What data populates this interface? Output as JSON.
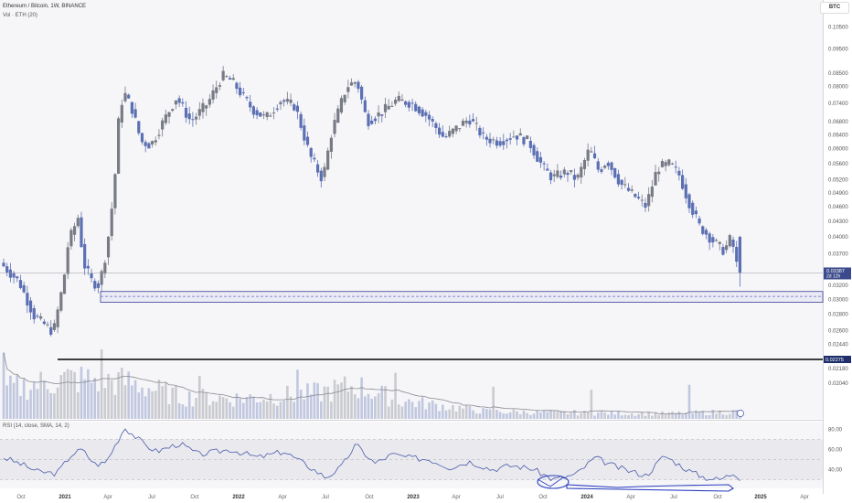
{
  "header": {
    "title": "Ethereum / Bitcoin, 1W, BINANCE",
    "volume_label": "Vol · ETH (20)",
    "rsi_label": "RSI (14, close, SMA, 14, 2)",
    "currency": "BTC"
  },
  "colors": {
    "up": "#787b86",
    "down": "#5b6fb3",
    "accent": "#2a3ec0",
    "background": "#f6f6f8"
  },
  "price_badges": {
    "current": "0.03387",
    "countdown": "2d 12h",
    "support_level": "0.02275"
  },
  "chart_data": {
    "type": "candlestick",
    "price_axis": {
      "scale": "log",
      "range": [
        0.0182,
        0.118
      ],
      "ticks": [
        "0.10500",
        "0.09500",
        "0.08500",
        "0.08000",
        "0.07400",
        "0.06800",
        "0.06400",
        "0.06000",
        "0.05600",
        "0.05200",
        "0.04900",
        "0.04600",
        "0.04300",
        "0.04000",
        "0.03700",
        "0.03200",
        "0.03000",
        "0.02800",
        "0.02600",
        "0.02440",
        "0.02180",
        "0.02040"
      ]
    },
    "rsi_axis": {
      "range": [
        24,
        86
      ],
      "ticks": [
        "80.00",
        "60.00",
        "40.00"
      ],
      "band": [
        30,
        70
      ]
    },
    "time_axis": [
      "Oct",
      "2021",
      "Apr",
      "Jul",
      "Oct",
      "2022",
      "Apr",
      "Jul",
      "Oct",
      "2023",
      "Apr",
      "Jul",
      "Oct",
      "2024",
      "Apr",
      "Jul",
      "Oct",
      "2025",
      "Apr"
    ],
    "last_price": 0.03387,
    "support_zone": [
      0.0296,
      0.0311
    ],
    "support_mid": 0.0304,
    "support_line": 0.02275,
    "anchors": [
      [
        "2020-09-01",
        0.0355
      ],
      [
        "2020-10-10",
        0.0325
      ],
      [
        "2020-11-10",
        0.0278
      ],
      [
        "2020-12-20",
        0.0258
      ],
      [
        "2021-01-10",
        0.0325
      ],
      [
        "2021-01-20",
        0.039
      ],
      [
        "2021-02-10",
        0.044
      ],
      [
        "2021-02-20",
        0.0355
      ],
      [
        "2021-03-10",
        0.0325
      ],
      [
        "2021-03-25",
        0.032
      ],
      [
        "2021-04-10",
        0.038
      ],
      [
        "2021-04-25",
        0.05
      ],
      [
        "2021-05-05",
        0.07
      ],
      [
        "2021-05-15",
        0.078
      ],
      [
        "2021-06-01",
        0.072
      ],
      [
        "2021-06-20",
        0.062
      ],
      [
        "2021-07-10",
        0.061
      ],
      [
        "2021-08-01",
        0.067
      ],
      [
        "2021-09-01",
        0.076
      ],
      [
        "2021-10-01",
        0.068
      ],
      [
        "2021-11-05",
        0.074
      ],
      [
        "2021-12-05",
        0.084
      ],
      [
        "2021-12-25",
        0.082
      ],
      [
        "2022-02-05",
        0.072
      ],
      [
        "2022-03-05",
        0.069
      ],
      [
        "2022-04-05",
        0.075
      ],
      [
        "2022-05-05",
        0.073
      ],
      [
        "2022-06-05",
        0.058
      ],
      [
        "2022-07-01",
        0.052
      ],
      [
        "2022-07-20",
        0.065
      ],
      [
        "2022-08-20",
        0.08
      ],
      [
        "2022-09-10",
        0.082
      ],
      [
        "2022-10-01",
        0.068
      ],
      [
        "2022-11-01",
        0.071
      ],
      [
        "2022-12-01",
        0.075
      ],
      [
        "2023-01-01",
        0.074
      ],
      [
        "2023-02-01",
        0.07
      ],
      [
        "2023-03-10",
        0.063
      ],
      [
        "2023-04-05",
        0.066
      ],
      [
        "2023-05-01",
        0.069
      ],
      [
        "2023-06-01",
        0.063
      ],
      [
        "2023-07-01",
        0.062
      ],
      [
        "2023-08-05",
        0.064
      ],
      [
        "2023-09-01",
        0.062
      ],
      [
        "2023-10-01",
        0.055
      ],
      [
        "2023-10-20",
        0.0525
      ],
      [
        "2023-11-20",
        0.054
      ],
      [
        "2023-12-10",
        0.052
      ],
      [
        "2024-01-05",
        0.06
      ],
      [
        "2024-01-25",
        0.054
      ],
      [
        "2024-02-10",
        0.057
      ],
      [
        "2024-03-10",
        0.051
      ],
      [
        "2024-04-10",
        0.048
      ],
      [
        "2024-05-01",
        0.046
      ],
      [
        "2024-05-25",
        0.055
      ],
      [
        "2024-06-20",
        0.056
      ],
      [
        "2024-07-10",
        0.053
      ],
      [
        "2024-07-25",
        0.048
      ],
      [
        "2024-08-20",
        0.042
      ],
      [
        "2024-09-20",
        0.039
      ],
      [
        "2024-10-10",
        0.0375
      ],
      [
        "2024-10-25",
        0.04
      ],
      [
        "2024-11-08",
        0.034
      ]
    ],
    "rsi_anchors": [
      [
        "2020-09-01",
        52
      ],
      [
        "2020-10-10",
        45
      ],
      [
        "2020-11-10",
        38
      ],
      [
        "2020-12-20",
        36
      ],
      [
        "2021-01-20",
        55
      ],
      [
        "2021-02-10",
        60
      ],
      [
        "2021-03-10",
        45
      ],
      [
        "2021-04-01",
        47
      ],
      [
        "2021-05-10",
        82
      ],
      [
        "2021-06-20",
        65
      ],
      [
        "2021-07-15",
        58
      ],
      [
        "2021-09-01",
        66
      ],
      [
        "2021-10-10",
        55
      ],
      [
        "2021-12-15",
        60
      ],
      [
        "2022-02-10",
        52
      ],
      [
        "2022-04-05",
        58
      ],
      [
        "2022-05-20",
        45
      ],
      [
        "2022-07-01",
        32
      ],
      [
        "2022-08-01",
        42
      ],
      [
        "2022-09-01",
        65
      ],
      [
        "2022-10-10",
        46
      ],
      [
        "2022-11-15",
        55
      ],
      [
        "2022-12-20",
        52
      ],
      [
        "2023-02-01",
        50
      ],
      [
        "2023-03-15",
        42
      ],
      [
        "2023-04-25",
        48
      ],
      [
        "2023-06-10",
        40
      ],
      [
        "2023-07-20",
        44
      ],
      [
        "2023-09-01",
        41
      ],
      [
        "2023-10-15",
        30
      ],
      [
        "2023-12-01",
        35
      ],
      [
        "2024-01-10",
        52
      ],
      [
        "2024-02-10",
        45
      ],
      [
        "2024-03-10",
        40
      ],
      [
        "2024-04-25",
        34
      ],
      [
        "2024-06-01",
        54
      ],
      [
        "2024-06-25",
        47
      ],
      [
        "2024-07-25",
        38
      ],
      [
        "2024-08-25",
        32
      ],
      [
        "2024-09-25",
        30
      ],
      [
        "2024-10-25",
        37
      ],
      [
        "2024-11-08",
        30
      ]
    ],
    "volume_levels": [
      [
        "2020-09-01",
        0.4
      ],
      [
        "2021-01-15",
        0.55
      ],
      [
        "2021-05-20",
        0.5
      ],
      [
        "2021-09-01",
        0.3
      ],
      [
        "2022-01-01",
        0.28
      ],
      [
        "2022-06-01",
        0.34
      ],
      [
        "2022-09-01",
        0.45
      ],
      [
        "2022-12-01",
        0.25
      ],
      [
        "2023-06-01",
        0.1
      ],
      [
        "2024-01-01",
        0.08
      ],
      [
        "2024-06-01",
        0.07
      ],
      [
        "2024-11-08",
        0.1
      ]
    ]
  }
}
